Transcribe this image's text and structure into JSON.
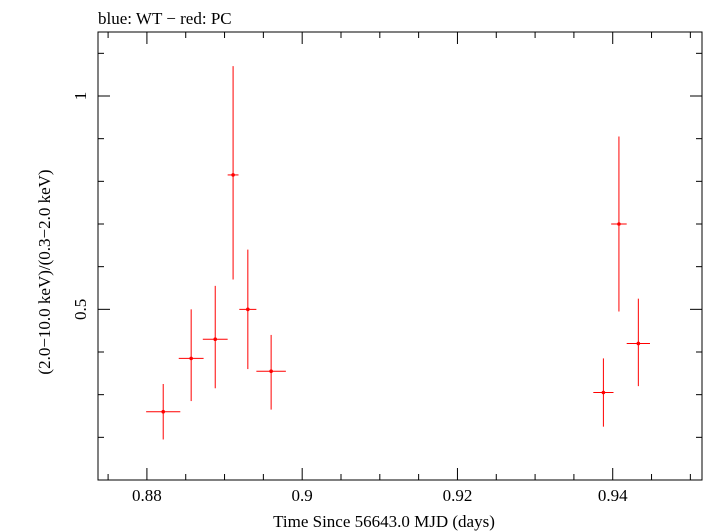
{
  "chart_data": {
    "type": "scatter",
    "title": "blue: WT − red: PC",
    "xlabel": "Time Since 56643.0 MJD (days)",
    "ylabel": "(2.0−10.0 keV)/(0.3−2.0 keV)",
    "xlim": [
      0.8737,
      0.9515
    ],
    "ylim": [
      0.1,
      1.15
    ],
    "x_ticks": [
      {
        "value": 0.88,
        "label": "0.88"
      },
      {
        "value": 0.9,
        "label": "0.9"
      },
      {
        "value": 0.92,
        "label": "0.92"
      },
      {
        "value": 0.94,
        "label": "0.94"
      }
    ],
    "y_ticks": [
      {
        "value": 0.5,
        "label": "0.5"
      },
      {
        "value": 1,
        "label": "1"
      }
    ],
    "colors": {
      "series": "#ff0000",
      "axes": "#000000"
    },
    "series": [
      {
        "name": "PC",
        "points": [
          {
            "x": 0.8821,
            "xerr": 0.0022,
            "y": 0.26,
            "ylo": 0.195,
            "yhi": 0.325
          },
          {
            "x": 0.8857,
            "xerr": 0.0016,
            "y": 0.385,
            "ylo": 0.285,
            "yhi": 0.5
          },
          {
            "x": 0.8888,
            "xerr": 0.0016,
            "y": 0.43,
            "ylo": 0.315,
            "yhi": 0.555
          },
          {
            "x": 0.8911,
            "xerr": 0.0007,
            "y": 0.815,
            "ylo": 0.57,
            "yhi": 1.07
          },
          {
            "x": 0.893,
            "xerr": 0.0011,
            "y": 0.5,
            "ylo": 0.36,
            "yhi": 0.64
          },
          {
            "x": 0.896,
            "xerr": 0.0019,
            "y": 0.355,
            "ylo": 0.265,
            "yhi": 0.44
          },
          {
            "x": 0.9388,
            "xerr": 0.0013,
            "y": 0.305,
            "ylo": 0.225,
            "yhi": 0.385
          },
          {
            "x": 0.9408,
            "xerr": 0.001,
            "y": 0.7,
            "ylo": 0.495,
            "yhi": 0.905
          },
          {
            "x": 0.9433,
            "xerr": 0.0015,
            "y": 0.42,
            "ylo": 0.32,
            "yhi": 0.525
          }
        ]
      }
    ]
  }
}
